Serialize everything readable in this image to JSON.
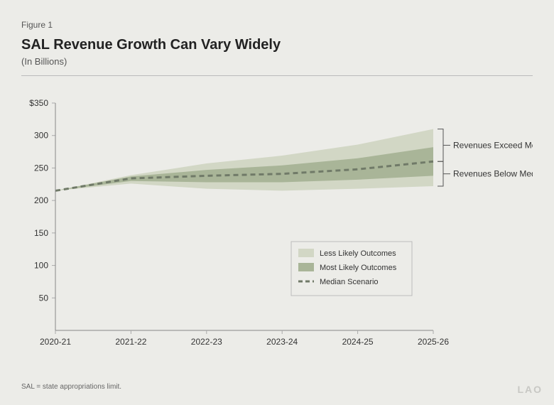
{
  "figure_label": "Figure 1",
  "title": "SAL Revenue Growth Can Vary Widely",
  "subtitle": "(In Billions)",
  "footnote": "SAL = state appropriations limit.",
  "watermark": "LAO",
  "chart": {
    "type": "line-band",
    "background_color": "#ecece8",
    "plot_background": "#ecece8",
    "axis_line_color": "#888888",
    "tick_color": "#aaaaaa",
    "text_color": "#333333",
    "x_categories": [
      "2020-21",
      "2021-22",
      "2022-23",
      "2023-24",
      "2024-25",
      "2025-26"
    ],
    "ylim": [
      0,
      350
    ],
    "ytick_step": 50,
    "y_prefix_first": "$",
    "less_likely_band": {
      "upper": [
        215,
        239,
        257,
        269,
        286,
        310
      ],
      "lower": [
        215,
        226,
        218,
        215,
        218,
        222
      ],
      "fill": "#d2d7c5",
      "opacity": 1
    },
    "most_likely_band": {
      "upper": [
        215,
        237,
        247,
        254,
        265,
        282
      ],
      "lower": [
        215,
        230,
        228,
        228,
        232,
        238
      ],
      "fill": "#a9b598",
      "opacity": 1
    },
    "median_line": {
      "values": [
        215,
        234,
        238,
        241,
        248,
        260
      ],
      "stroke": "#707a68",
      "stroke_width": 3,
      "dash": "7 5"
    },
    "annotations": {
      "exceed": "Revenues Exceed Median",
      "below": "Revenues Below Median"
    },
    "bracket_color": "#555555",
    "legend": {
      "items": [
        {
          "type": "swatch",
          "fill": "#d2d7c5",
          "label": "Less Likely Outcomes"
        },
        {
          "type": "swatch",
          "fill": "#a9b598",
          "label": "Most Likely Outcomes"
        },
        {
          "type": "dash",
          "stroke": "#707a68",
          "label": "Median Scenario"
        }
      ],
      "border_color": "#bbbbbb",
      "background": "#ecece8"
    }
  }
}
